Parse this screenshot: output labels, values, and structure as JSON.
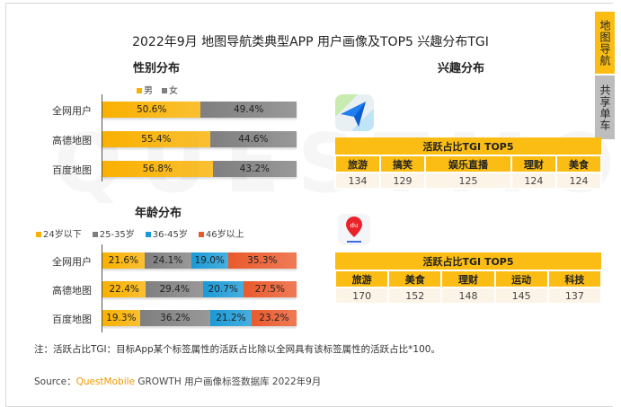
{
  "title": "2022年9月 地图导航类典型APP 用户画像及TOP5 兴趣分布TGI",
  "side_tabs": [
    {
      "label": "地图导航",
      "color": "#fbbd14"
    },
    {
      "label": "共享单车",
      "color": "#bdbdbd"
    }
  ],
  "watermark": "QUESTMOBILE",
  "chart_data": [
    {
      "type": "bar",
      "stacked": true,
      "orientation": "horizontal",
      "title": "性别分布",
      "categories": [
        "全网用户",
        "高德地图",
        "百度地图"
      ],
      "series": [
        {
          "name": "男",
          "color": "#f9b000",
          "values": [
            50.6,
            55.4,
            56.8
          ]
        },
        {
          "name": "女",
          "color": "#7f7f7f",
          "values": [
            49.4,
            44.6,
            43.2
          ]
        }
      ],
      "unit": "%"
    },
    {
      "type": "bar",
      "stacked": true,
      "orientation": "horizontal",
      "title": "年龄分布",
      "categories": [
        "全网用户",
        "高德地图",
        "百度地图"
      ],
      "series": [
        {
          "name": "24岁以下",
          "color": "#f9b000",
          "values": [
            21.6,
            22.4,
            19.3
          ]
        },
        {
          "name": "25-35岁",
          "color": "#7f7f7f",
          "values": [
            24.1,
            29.4,
            36.2
          ]
        },
        {
          "name": "36-45岁",
          "color": "#1a9ad6",
          "values": [
            19.0,
            20.7,
            21.2
          ]
        },
        {
          "name": "46岁以上",
          "color": "#ea5a2c",
          "values": [
            35.3,
            27.5,
            23.2
          ]
        }
      ],
      "unit": "%"
    }
  ],
  "interest": {
    "title": "兴趣分布",
    "tables": [
      {
        "app": "高德地图",
        "header": "活跃占比TGI TOP5",
        "columns": [
          "旅游",
          "搞笑",
          "娱乐直播",
          "理财",
          "美食"
        ],
        "values": [
          "134",
          "129",
          "125",
          "124",
          "124"
        ]
      },
      {
        "app": "百度地图",
        "icon_text": "du",
        "header": "活跃占比TGI TOP5",
        "columns": [
          "旅游",
          "美食",
          "理财",
          "运动",
          "科技"
        ],
        "values": [
          "170",
          "152",
          "148",
          "145",
          "137"
        ]
      }
    ]
  },
  "note": "注：活跃占比TGI：目标App某个标签属性的活跃占比除以全网具有该标签属性的活跃占比*100。",
  "source": {
    "prefix": "Source：",
    "brand": "QuestMobile",
    "rest": " GROWTH 用户画像标签数据库 2022年9月",
    "brand_color": "#f39800"
  }
}
